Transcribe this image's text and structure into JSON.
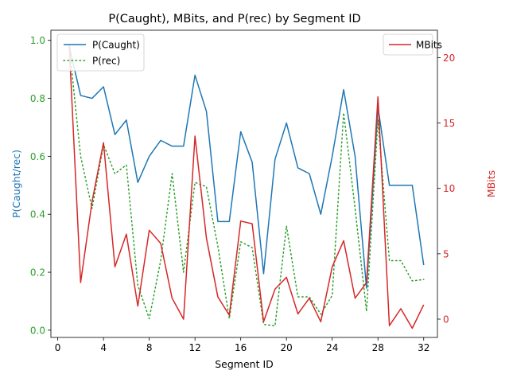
{
  "chart_data": {
    "type": "line",
    "title": "P(Caught), MBits, and P(rec) by Segment ID",
    "xlabel": "Segment ID",
    "ylabel_left": "P(Caught/rec)",
    "ylabel_right": "MBits",
    "xlim": [
      -0.6,
      33.2
    ],
    "ylim_left": [
      -0.025,
      1.035
    ],
    "ylim_right": [
      -1.4,
      22.1
    ],
    "x_ticks": [
      "0",
      "4",
      "8",
      "12",
      "16",
      "20",
      "24",
      "28",
      "32"
    ],
    "y_ticks_left": [
      "0.0",
      "0.2",
      "0.4",
      "0.6",
      "0.8",
      "1.0"
    ],
    "y_ticks_right": [
      "0",
      "5",
      "10",
      "15",
      "20"
    ],
    "left_legend": [
      "P(Caught)",
      "P(rec)"
    ],
    "right_legend": [
      "MBits"
    ],
    "colors": {
      "p_caught": "#1f77b4",
      "p_rec": "#2ca02c",
      "mbits": "#d62728",
      "left_axis": "#2ca02c",
      "right_axis": "#d62728",
      "left_label": "#1f77b4"
    },
    "x": [
      1,
      2,
      3,
      4,
      5,
      6,
      7,
      8,
      9,
      10,
      11,
      12,
      13,
      14,
      15,
      16,
      17,
      18,
      19,
      20,
      21,
      22,
      23,
      24,
      25,
      26,
      27,
      28,
      29,
      30,
      31,
      32
    ],
    "series": [
      {
        "name": "P(Caught)",
        "axis": "left",
        "style": "solid",
        "values": [
          0.98,
          0.81,
          0.8,
          0.84,
          0.675,
          0.725,
          0.51,
          0.6,
          0.655,
          0.635,
          0.635,
          0.88,
          0.755,
          0.375,
          0.375,
          0.685,
          0.58,
          0.195,
          0.59,
          0.715,
          0.56,
          0.54,
          0.4,
          0.6,
          0.83,
          0.6,
          0.145,
          0.77,
          0.5,
          0.5,
          0.5,
          0.225
        ]
      },
      {
        "name": "P(rec)",
        "axis": "left",
        "style": "dotted",
        "values": [
          0.98,
          0.6,
          0.42,
          0.64,
          0.54,
          0.57,
          0.155,
          0.04,
          0.24,
          0.54,
          0.2,
          0.51,
          0.495,
          0.29,
          0.04,
          0.305,
          0.285,
          0.02,
          0.015,
          0.36,
          0.115,
          0.115,
          0.055,
          0.12,
          0.75,
          0.42,
          0.065,
          0.725,
          0.24,
          0.24,
          0.17,
          0.175
        ]
      },
      {
        "name": "MBits",
        "axis": "right",
        "style": "solid",
        "values": [
          21,
          2.8,
          9,
          13.5,
          4,
          6.5,
          1,
          6.8,
          5.8,
          1.6,
          0,
          14,
          6.2,
          1.7,
          0.3,
          7.5,
          7.3,
          -0.2,
          2.3,
          3.2,
          0.4,
          1.6,
          -0.2,
          4,
          6,
          1.6,
          2.8,
          17,
          -0.5,
          0.8,
          -0.7,
          1.1
        ]
      }
    ]
  }
}
